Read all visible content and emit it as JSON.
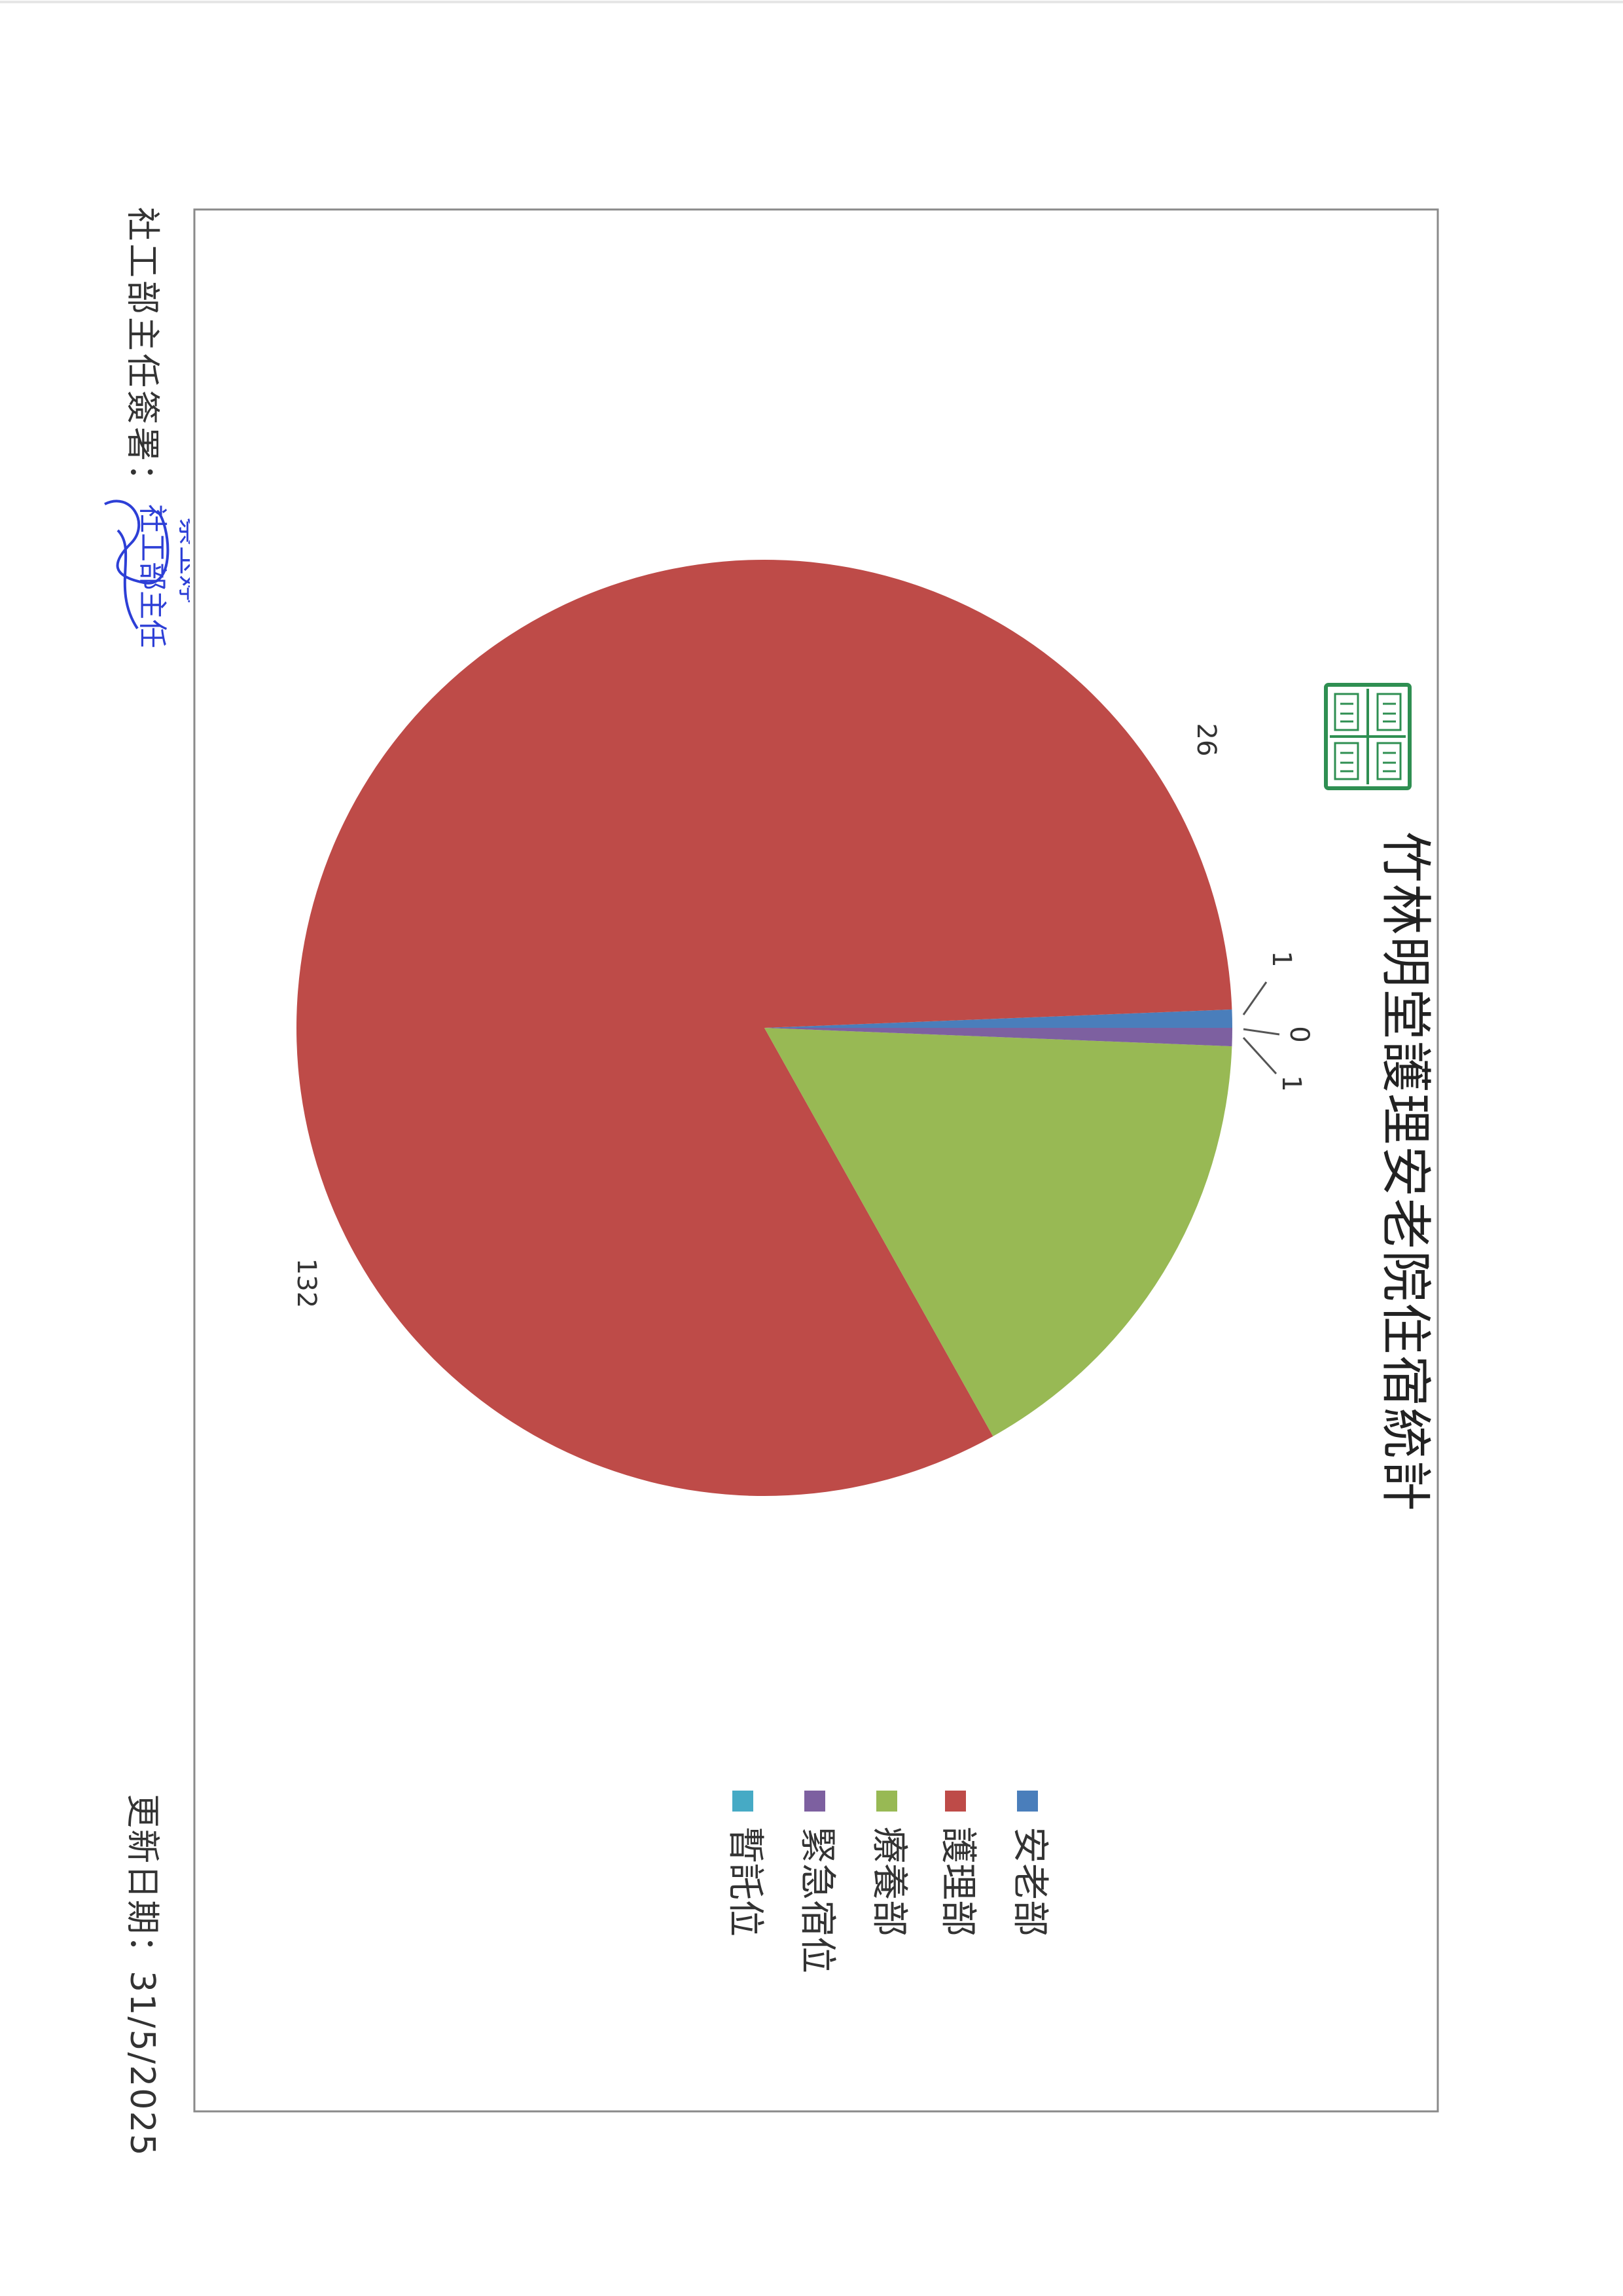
{
  "chart_data": {
    "type": "pie",
    "title": "竹林明堂護理安老院住宿統計",
    "categories": [
      "安老部",
      "護理部",
      "療養部",
      "緊急宿位",
      "暫託位"
    ],
    "values": [
      1,
      132,
      26,
      1,
      0
    ],
    "colors": [
      "#4a7ebb",
      "#be4b48",
      "#98b954",
      "#7d60a0",
      "#46aac5"
    ],
    "legend_position": "bottom",
    "data_labels": [
      "1",
      "132",
      "26",
      "1",
      "0"
    ]
  },
  "footer": {
    "signature_label": "社工部主任簽署：",
    "update_date": "更新日期：31/5/2025"
  },
  "signature_stamp": {
    "name": "蔡玉婷",
    "position": "社工部主任",
    "color": "#2d3fd6"
  },
  "seal": {
    "color": "#2f8f52"
  }
}
